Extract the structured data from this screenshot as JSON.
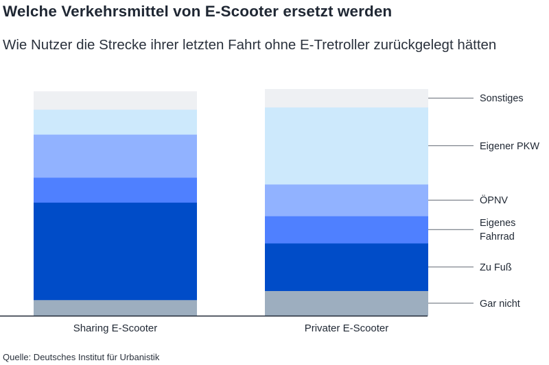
{
  "header": {
    "title": "Welche Verkehrsmittel von E-Scooter ersetzt werden",
    "subtitle": "Wie Nutzer die Strecke ihrer letzten Fahrt ohne E-Tretroller zurückgelegt hätten"
  },
  "chart_data": {
    "type": "bar",
    "stacked": true,
    "percent": true,
    "categories": [
      "Sharing E-Scooter",
      "Privater E-Scooter"
    ],
    "series": [
      {
        "name": "Gar nicht",
        "values": [
          7,
          11
        ],
        "color": "#9daebf"
      },
      {
        "name": "Zu Fuß",
        "values": [
          43,
          21
        ],
        "color": "#004cc8"
      },
      {
        "name": "Eigenes Fahrrad",
        "values": [
          11,
          12
        ],
        "color": "#4f80ff"
      },
      {
        "name": "ÖPNV",
        "values": [
          19,
          14
        ],
        "color": "#91b2ff"
      },
      {
        "name": "Eigener PKW",
        "values": [
          11,
          34
        ],
        "color": "#cde9fc"
      },
      {
        "name": "Sonstiges",
        "values": [
          8,
          8
        ],
        "color": "#eef0f3"
      }
    ],
    "legend_labels": [
      {
        "series": "Sonstiges",
        "lines": [
          "Sonstiges"
        ]
      },
      {
        "series": "Eigener PKW",
        "lines": [
          "Eigener PKW"
        ]
      },
      {
        "series": "ÖPNV",
        "lines": [
          "ÖPNV"
        ]
      },
      {
        "series": "Eigenes Fahrrad",
        "lines": [
          "Eigenes",
          "Fahrrad"
        ]
      },
      {
        "series": "Zu Fuß",
        "lines": [
          "Zu Fuß"
        ]
      },
      {
        "series": "Gar nicht",
        "lines": [
          "Gar nicht"
        ]
      }
    ],
    "legend_position": "right",
    "ylim": [
      0,
      100
    ],
    "grid": false
  },
  "footer": {
    "source": "Quelle: Deutsches Institut für Urbanistik"
  }
}
